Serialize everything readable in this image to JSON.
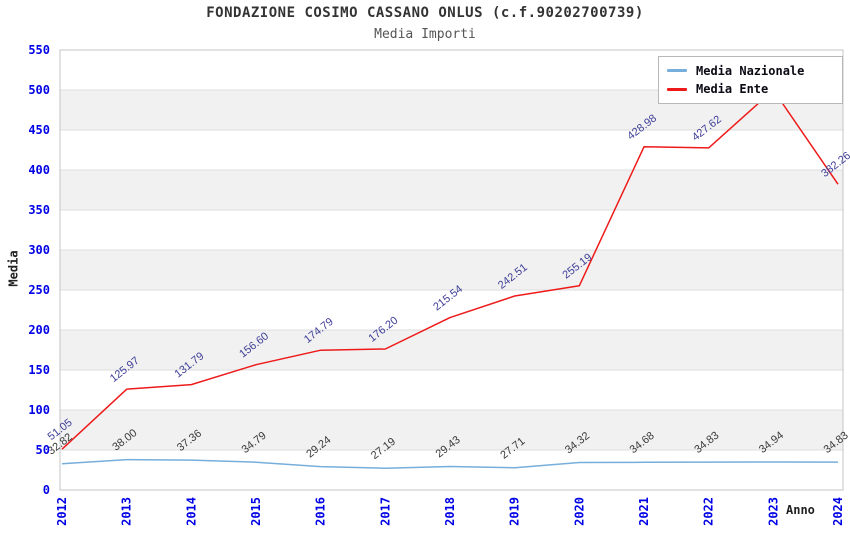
{
  "header": {
    "title": "FONDAZIONE COSIMO CASSANO ONLUS (c.f.90202700739)",
    "subtitle": "Media Importi"
  },
  "axes": {
    "y_title": "Media",
    "x_title": "Anno",
    "y_ticks": [
      "0",
      "50",
      "100",
      "150",
      "200",
      "250",
      "300",
      "350",
      "400",
      "450",
      "500",
      "550"
    ],
    "x_ticks": [
      "2012",
      "2013",
      "2014",
      "2015",
      "2016",
      "2017",
      "2018",
      "2019",
      "2020",
      "2021",
      "2022",
      "2023",
      "2024"
    ],
    "tick_color": "#0000e6"
  },
  "legend": {
    "items": [
      {
        "label": "Media Nazionale",
        "color": "#77aedb"
      },
      {
        "label": "Media Ente",
        "color": "#ee1a1a"
      }
    ]
  },
  "colors": {
    "band_gray": "#f1f1f1",
    "grid_line": "#dddddd",
    "plot_border": "#c4c4c4",
    "title_text": "#333333",
    "subtitle_text": "#555555"
  },
  "chart_data": {
    "type": "line",
    "title": "FONDAZIONE COSIMO CASSANO ONLUS (c.f.90202700739)",
    "subtitle": "Media Importi",
    "xlabel": "Anno",
    "ylabel": "Media",
    "ylim": [
      0,
      550
    ],
    "y_tick_step": 50,
    "grid": true,
    "alternating_bands": true,
    "legend_position": "top-right",
    "x": [
      "2012",
      "2013",
      "2014",
      "2015",
      "2016",
      "2017",
      "2018",
      "2019",
      "2020",
      "2021",
      "2022",
      "2023",
      "2024"
    ],
    "series": [
      {
        "name": "Media Nazionale",
        "color": "#77aedb",
        "label_color": "#3a3a3a",
        "values": [
          32.82,
          38.0,
          37.36,
          34.79,
          29.24,
          27.19,
          29.43,
          27.71,
          34.32,
          34.68,
          34.83,
          34.94,
          34.83
        ],
        "labels": [
          "32.82",
          "38.00",
          "37.36",
          "34.79",
          "29.24",
          "27.19",
          "29.43",
          "27.71",
          "34.32",
          "34.68",
          "34.83",
          "34.94",
          "34.83"
        ]
      },
      {
        "name": "Media Ente",
        "color": "#ee1a1a",
        "label_color": "#40409a",
        "values": [
          51.05,
          125.97,
          131.79,
          156.6,
          174.79,
          176.2,
          215.54,
          242.51,
          255.19,
          428.98,
          427.62,
          500.0,
          382.26
        ],
        "labels": [
          "51.05",
          "125.97",
          "131.79",
          "156.60",
          "174.79",
          "176.20",
          "215.54",
          "242.51",
          "255.19",
          "428.98",
          "427.62",
          "",
          "382.26"
        ]
      }
    ]
  }
}
